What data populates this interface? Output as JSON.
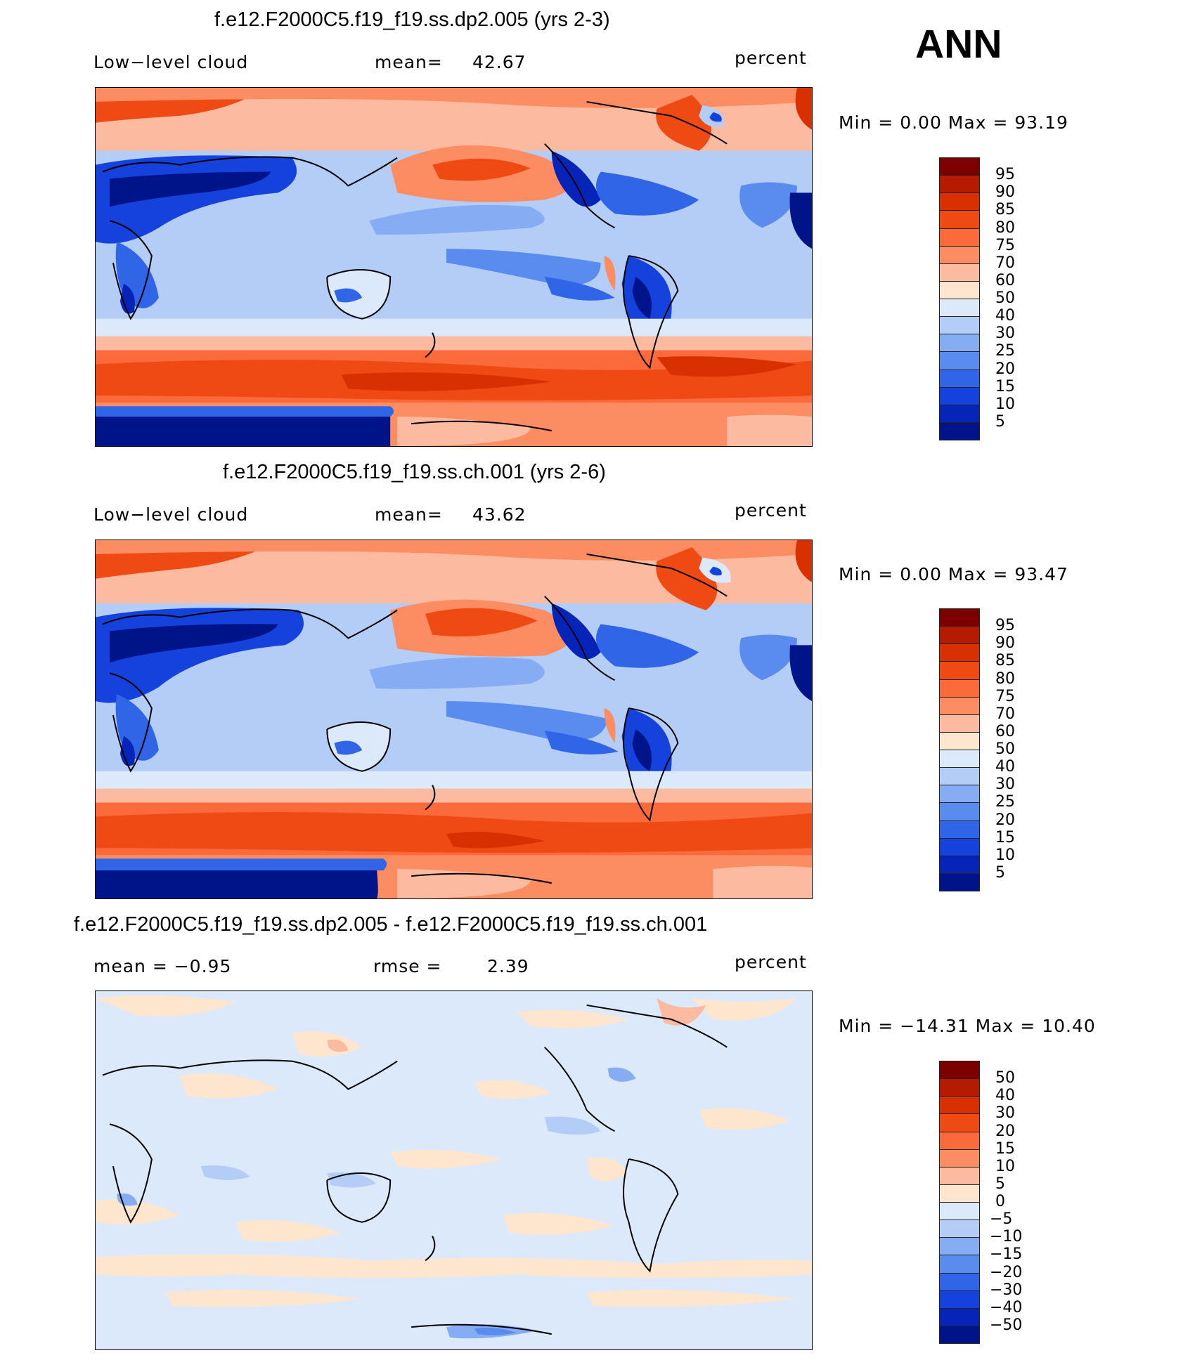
{
  "season": "ANN",
  "panels": [
    {
      "title": "f.e12.F2000C5.f19_f19.ss.dp2.005 (yrs 2-3)",
      "left_label": "Low−level cloud",
      "center_label": "mean=",
      "center_value": "42.67",
      "right_label": "percent",
      "minmax": "Min =    0.00 Max =   93.19",
      "kind": "abs"
    },
    {
      "title": "f.e12.F2000C5.f19_f19.ss.ch.001 (yrs 2-6)",
      "left_label": "Low−level cloud",
      "center_label": "mean=",
      "center_value": "43.62",
      "right_label": "percent",
      "minmax": "Min =    0.00 Max =   93.47",
      "kind": "abs"
    },
    {
      "title": "f.e12.F2000C5.f19_f19.ss.dp2.005 - f.e12.F2000C5.f19_f19.ss.ch.001",
      "left_label": "mean =    −0.95",
      "center_label": "rmse =",
      "center_value": "2.39",
      "right_label": "percent",
      "minmax": "Min = −14.31 Max =   10.40",
      "kind": "diff"
    }
  ],
  "colorbars": {
    "abs": {
      "labels": [
        "95",
        "90",
        "85",
        "80",
        "75",
        "70",
        "60",
        "50",
        "40",
        "30",
        "25",
        "20",
        "15",
        "10",
        "5"
      ],
      "colors": [
        "#7d0000",
        "#b41b00",
        "#d93000",
        "#ef4a14",
        "#fb6a3a",
        "#fc8d62",
        "#fcbba1",
        "#fee6ce",
        "#dbe9fb",
        "#b4cdf7",
        "#86acf4",
        "#5a8bef",
        "#3065e8",
        "#1542dc",
        "#0625b8",
        "#001489"
      ]
    },
    "diff": {
      "labels": [
        "50",
        "40",
        "30",
        "20",
        "15",
        "10",
        "5",
        "0",
        "−5",
        "−10",
        "−15",
        "−20",
        "−30",
        "−40",
        "−50"
      ],
      "colors": [
        "#7d0000",
        "#b41b00",
        "#d93000",
        "#ef4a14",
        "#fb6a3a",
        "#fc8d62",
        "#fcbba1",
        "#fee6ce",
        "#dbe9fb",
        "#b4cdf7",
        "#86acf4",
        "#5a8bef",
        "#3065e8",
        "#1542dc",
        "#0625b8",
        "#001489"
      ]
    }
  }
}
